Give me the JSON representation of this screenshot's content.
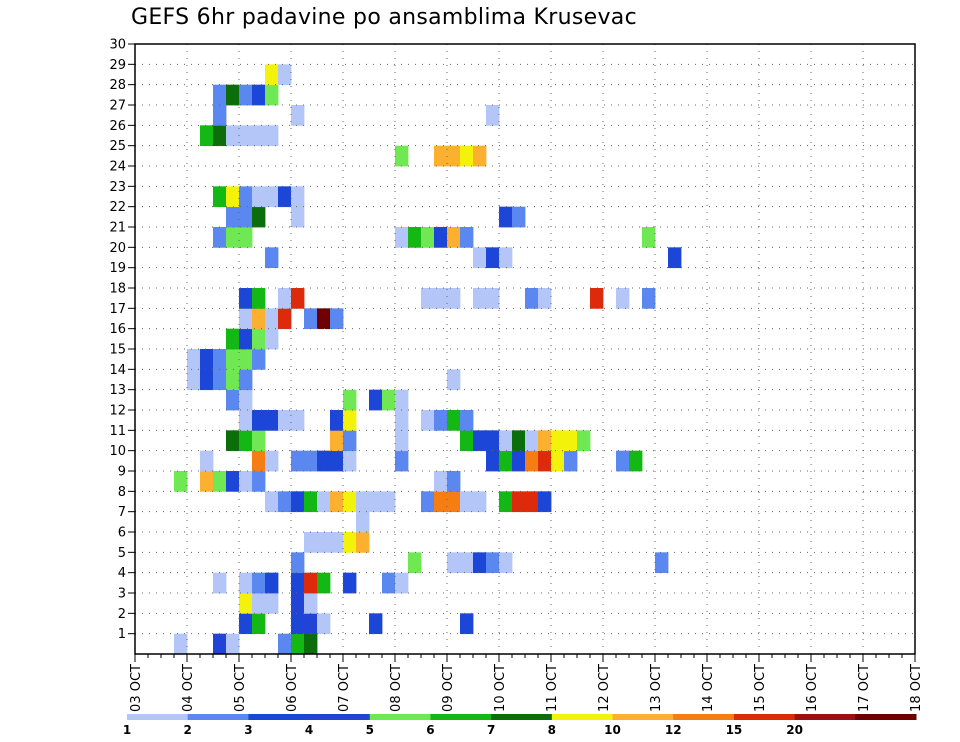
{
  "chart_data": {
    "type": "heatmap",
    "title": "GEFS 6hr padavine po ansamblima Krusevac",
    "x_tick_labels": [
      "03 OCT",
      "04 OCT",
      "05 OCT",
      "06 OCT",
      "07 OCT",
      "08 OCT",
      "09 OCT",
      "10 OCT",
      "11 OCT",
      "12 OCT",
      "13 OCT",
      "14 OCT",
      "15 OCT",
      "16 OCT",
      "17 OCT",
      "18 OCT"
    ],
    "x_unit": "6-hour step",
    "y_range": [
      0,
      30
    ],
    "y_tick_labels": [
      "1",
      "2",
      "3",
      "4",
      "5",
      "6",
      "7",
      "8",
      "9",
      "10",
      "11",
      "12",
      "13",
      "14",
      "15",
      "16",
      "17",
      "18",
      "19",
      "20",
      "21",
      "22",
      "23",
      "24",
      "25",
      "26",
      "27",
      "28",
      "29",
      "30"
    ],
    "grid": true,
    "colorbar": {
      "labels": [
        "1",
        "2",
        "3",
        "4",
        "5",
        "6",
        "7",
        "8",
        "10",
        "12",
        "15",
        "20"
      ],
      "colors": [
        "#b3c6f7",
        "#5b88f0",
        "#1b46d8",
        "#2143d6",
        "#6fe854",
        "#14b814",
        "#0b6e0b",
        "#f2f20a",
        "#fbb030",
        "#f57d12",
        "#dc2a0a",
        "#a00f0f",
        "#6e0000"
      ]
    },
    "cells": [
      [
        3,
        0,
        1
      ],
      [
        6,
        0,
        4
      ],
      [
        7,
        0,
        1
      ],
      [
        11,
        0,
        2
      ],
      [
        12,
        0,
        6
      ],
      [
        13,
        0,
        7
      ],
      [
        8,
        1,
        3
      ],
      [
        9,
        1,
        6
      ],
      [
        12,
        1,
        3
      ],
      [
        13,
        1,
        4
      ],
      [
        14,
        1,
        1
      ],
      [
        18,
        1,
        3
      ],
      [
        25,
        1,
        3
      ],
      [
        8,
        2,
        8
      ],
      [
        9,
        2,
        1
      ],
      [
        10,
        2,
        1
      ],
      [
        12,
        2,
        4
      ],
      [
        13,
        2,
        1
      ],
      [
        6,
        3,
        1
      ],
      [
        8,
        3,
        1
      ],
      [
        9,
        3,
        2
      ],
      [
        10,
        3,
        3
      ],
      [
        12,
        3,
        3
      ],
      [
        13,
        3,
        11
      ],
      [
        14,
        3,
        6
      ],
      [
        16,
        3,
        3
      ],
      [
        19,
        3,
        2
      ],
      [
        20,
        3,
        1
      ],
      [
        12,
        4,
        2
      ],
      [
        21,
        4,
        5
      ],
      [
        24,
        4,
        1
      ],
      [
        25,
        4,
        1
      ],
      [
        26,
        4,
        3
      ],
      [
        27,
        4,
        2
      ],
      [
        28,
        4,
        1
      ],
      [
        40,
        4,
        2
      ],
      [
        13,
        5,
        1
      ],
      [
        14,
        5,
        1
      ],
      [
        15,
        5,
        1
      ],
      [
        16,
        5,
        8
      ],
      [
        17,
        5,
        9
      ],
      [
        17,
        6,
        1
      ],
      [
        10,
        7,
        1
      ],
      [
        11,
        7,
        2
      ],
      [
        12,
        7,
        3
      ],
      [
        13,
        7,
        6
      ],
      [
        14,
        7,
        1
      ],
      [
        15,
        7,
        9
      ],
      [
        16,
        7,
        8
      ],
      [
        17,
        7,
        1
      ],
      [
        18,
        7,
        1
      ],
      [
        19,
        7,
        1
      ],
      [
        22,
        7,
        2
      ],
      [
        23,
        7,
        10
      ],
      [
        24,
        7,
        10
      ],
      [
        25,
        7,
        1
      ],
      [
        26,
        7,
        1
      ],
      [
        28,
        7,
        6
      ],
      [
        29,
        7,
        11
      ],
      [
        30,
        7,
        11
      ],
      [
        31,
        7,
        3
      ],
      [
        3,
        8,
        5
      ],
      [
        5,
        8,
        9
      ],
      [
        6,
        8,
        5
      ],
      [
        7,
        8,
        3
      ],
      [
        8,
        8,
        1
      ],
      [
        9,
        8,
        2
      ],
      [
        23,
        8,
        1
      ],
      [
        24,
        8,
        2
      ],
      [
        5,
        9,
        1
      ],
      [
        9,
        9,
        10
      ],
      [
        10,
        9,
        1
      ],
      [
        12,
        9,
        2
      ],
      [
        13,
        9,
        2
      ],
      [
        14,
        9,
        3
      ],
      [
        15,
        9,
        3
      ],
      [
        16,
        9,
        1
      ],
      [
        20,
        9,
        2
      ],
      [
        27,
        9,
        3
      ],
      [
        28,
        9,
        6
      ],
      [
        29,
        9,
        3
      ],
      [
        30,
        9,
        10
      ],
      [
        31,
        9,
        11
      ],
      [
        32,
        9,
        8
      ],
      [
        33,
        9,
        2
      ],
      [
        37,
        9,
        2
      ],
      [
        38,
        9,
        6
      ],
      [
        7,
        10,
        7
      ],
      [
        8,
        10,
        6
      ],
      [
        9,
        10,
        5
      ],
      [
        15,
        10,
        9
      ],
      [
        16,
        10,
        2
      ],
      [
        20,
        10,
        1
      ],
      [
        25,
        10,
        6
      ],
      [
        26,
        10,
        3
      ],
      [
        27,
        10,
        3
      ],
      [
        28,
        10,
        1
      ],
      [
        29,
        10,
        7
      ],
      [
        30,
        10,
        1
      ],
      [
        31,
        10,
        9
      ],
      [
        32,
        10,
        8
      ],
      [
        33,
        10,
        8
      ],
      [
        34,
        10,
        5
      ],
      [
        8,
        11,
        1
      ],
      [
        9,
        11,
        3
      ],
      [
        10,
        11,
        3
      ],
      [
        11,
        11,
        1
      ],
      [
        12,
        11,
        1
      ],
      [
        15,
        11,
        3
      ],
      [
        16,
        11,
        8
      ],
      [
        20,
        11,
        1
      ],
      [
        22,
        11,
        1
      ],
      [
        23,
        11,
        2
      ],
      [
        24,
        11,
        6
      ],
      [
        25,
        11,
        2
      ],
      [
        7,
        12,
        2
      ],
      [
        8,
        12,
        1
      ],
      [
        16,
        12,
        5
      ],
      [
        18,
        12,
        3
      ],
      [
        19,
        12,
        5
      ],
      [
        20,
        12,
        1
      ],
      [
        4,
        13,
        1
      ],
      [
        5,
        13,
        3
      ],
      [
        6,
        13,
        2
      ],
      [
        7,
        13,
        5
      ],
      [
        8,
        13,
        2
      ],
      [
        24,
        13,
        1
      ],
      [
        4,
        14,
        1
      ],
      [
        5,
        14,
        3
      ],
      [
        6,
        14,
        2
      ],
      [
        7,
        14,
        5
      ],
      [
        8,
        14,
        5
      ],
      [
        9,
        14,
        2
      ],
      [
        7,
        15,
        6
      ],
      [
        8,
        15,
        3
      ],
      [
        9,
        15,
        5
      ],
      [
        10,
        15,
        1
      ],
      [
        8,
        16,
        1
      ],
      [
        9,
        16,
        9
      ],
      [
        10,
        16,
        1
      ],
      [
        11,
        16,
        11
      ],
      [
        13,
        16,
        2
      ],
      [
        14,
        16,
        13
      ],
      [
        15,
        16,
        2
      ],
      [
        8,
        17,
        3
      ],
      [
        9,
        17,
        6
      ],
      [
        11,
        17,
        1
      ],
      [
        12,
        17,
        11
      ],
      [
        22,
        17,
        1
      ],
      [
        23,
        17,
        1
      ],
      [
        24,
        17,
        1
      ],
      [
        26,
        17,
        1
      ],
      [
        27,
        17,
        1
      ],
      [
        30,
        17,
        2
      ],
      [
        31,
        17,
        1
      ],
      [
        35,
        17,
        11
      ],
      [
        37,
        17,
        1
      ],
      [
        39,
        17,
        2
      ],
      [
        10,
        19,
        2
      ],
      [
        26,
        19,
        1
      ],
      [
        27,
        19,
        3
      ],
      [
        28,
        19,
        1
      ],
      [
        41,
        19,
        3
      ],
      [
        6,
        20,
        2
      ],
      [
        7,
        20,
        5
      ],
      [
        8,
        20,
        5
      ],
      [
        20,
        20,
        1
      ],
      [
        21,
        20,
        6
      ],
      [
        22,
        20,
        5
      ],
      [
        23,
        20,
        3
      ],
      [
        24,
        20,
        9
      ],
      [
        25,
        20,
        2
      ],
      [
        39,
        20,
        5
      ],
      [
        7,
        21,
        2
      ],
      [
        8,
        21,
        2
      ],
      [
        9,
        21,
        7
      ],
      [
        12,
        21,
        1
      ],
      [
        28,
        21,
        3
      ],
      [
        29,
        21,
        2
      ],
      [
        6,
        22,
        6
      ],
      [
        7,
        22,
        8
      ],
      [
        8,
        22,
        2
      ],
      [
        9,
        22,
        1
      ],
      [
        10,
        22,
        1
      ],
      [
        11,
        22,
        3
      ],
      [
        12,
        22,
        1
      ],
      [
        20,
        24,
        5
      ],
      [
        23,
        24,
        9
      ],
      [
        24,
        24,
        9
      ],
      [
        25,
        24,
        8
      ],
      [
        26,
        24,
        9
      ],
      [
        5,
        25,
        6
      ],
      [
        6,
        25,
        7
      ],
      [
        7,
        25,
        1
      ],
      [
        8,
        25,
        1
      ],
      [
        9,
        25,
        1
      ],
      [
        10,
        25,
        1
      ],
      [
        6,
        26,
        2
      ],
      [
        12,
        26,
        1
      ],
      [
        27,
        26,
        1
      ],
      [
        6,
        27,
        2
      ],
      [
        7,
        27,
        7
      ],
      [
        8,
        27,
        2
      ],
      [
        9,
        27,
        3
      ],
      [
        10,
        27,
        5
      ],
      [
        10,
        28,
        8
      ],
      [
        11,
        28,
        1
      ]
    ]
  }
}
